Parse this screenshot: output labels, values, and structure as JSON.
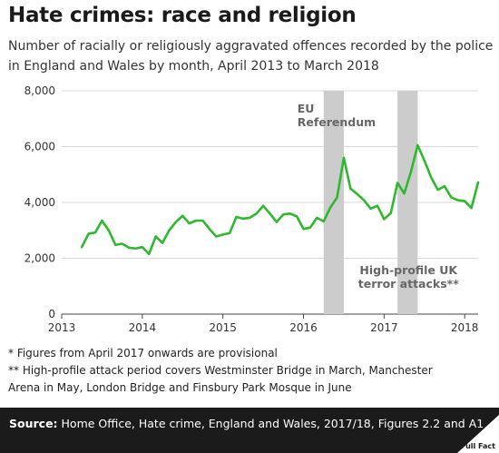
{
  "header": {
    "title": "Hate crimes: race and religion",
    "subtitle": "Number of racially or religiously aggravated offences recorded by the police in England and Wales by month, April 2013 to March 2018"
  },
  "footnotes": [
    "* Figures from April 2017 onwards are provisional",
    "** High-profile attack period covers Westminster Bridge in March, Manchester",
    "Arena in May, London Bridge and Finsbury Park Mosque in June"
  ],
  "footer": {
    "source_label": "Source:",
    "source_text": "Home Office, Hate crime, England and Wales, 2017/18, Figures 2.2 and A1",
    "logo_text": "Full Fact"
  },
  "colors": {
    "line": "#2eb82e",
    "band": "#cccccc",
    "band_text": "#666666",
    "grid": "#d9d9d9",
    "footer_bg": "#1b1b1b"
  },
  "chart_data": {
    "type": "line",
    "title": "Hate crimes: race and religion",
    "xlabel": "",
    "ylabel": "",
    "ylim": [
      0,
      8000
    ],
    "xlim": [
      "2013-01",
      "2018-03"
    ],
    "yticks": [
      0,
      2000,
      4000,
      6000,
      8000
    ],
    "ytick_labels": [
      "0",
      "2,000",
      "4,000",
      "6,000",
      "8,000"
    ],
    "xticks": [
      "2013-01",
      "2014-01",
      "2015-01",
      "2016-01",
      "2017-01",
      "2018-01"
    ],
    "xtick_labels": [
      "2013",
      "2014",
      "2015",
      "2016",
      "2017",
      "2018"
    ],
    "grid": true,
    "bands": [
      {
        "label": "EU Referendum",
        "label_lines": [
          "EU",
          "Referendum"
        ],
        "start": "2016-04",
        "end": "2016-07",
        "label_position": "top"
      },
      {
        "label": "High-profile UK terror attacks**",
        "label_lines": [
          "High-profile UK",
          "terror attacks**"
        ],
        "start": "2017-03",
        "end": "2017-06",
        "label_position": "bottom"
      }
    ],
    "x": [
      "2013-04",
      "2013-05",
      "2013-06",
      "2013-07",
      "2013-08",
      "2013-09",
      "2013-10",
      "2013-11",
      "2013-12",
      "2014-01",
      "2014-02",
      "2014-03",
      "2014-04",
      "2014-05",
      "2014-06",
      "2014-07",
      "2014-08",
      "2014-09",
      "2014-10",
      "2014-11",
      "2014-12",
      "2015-01",
      "2015-02",
      "2015-03",
      "2015-04",
      "2015-05",
      "2015-06",
      "2015-07",
      "2015-08",
      "2015-09",
      "2015-10",
      "2015-11",
      "2015-12",
      "2016-01",
      "2016-02",
      "2016-03",
      "2016-04",
      "2016-05",
      "2016-06",
      "2016-07",
      "2016-08",
      "2016-09",
      "2016-10",
      "2016-11",
      "2016-12",
      "2017-01",
      "2017-02",
      "2017-03",
      "2017-04",
      "2017-05",
      "2017-06",
      "2017-07",
      "2017-08",
      "2017-09",
      "2017-10",
      "2017-11",
      "2017-12",
      "2018-01",
      "2018-02",
      "2018-03"
    ],
    "series": [
      {
        "values": [
          2400,
          2880,
          2920,
          3350,
          3000,
          2480,
          2520,
          2380,
          2350,
          2400,
          2150,
          2780,
          2550,
          3000,
          3300,
          3520,
          3250,
          3350,
          3350,
          3050,
          2780,
          2850,
          2900,
          3480,
          3420,
          3450,
          3600,
          3880,
          3600,
          3300,
          3570,
          3600,
          3500,
          3050,
          3100,
          3450,
          3320,
          3820,
          4180,
          5600,
          4500,
          4300,
          4080,
          3780,
          3880,
          3400,
          3620,
          4700,
          4320,
          5100,
          6050,
          5500,
          4900,
          4450,
          4580,
          4180,
          4080,
          4050,
          3800,
          4720
        ]
      }
    ]
  }
}
